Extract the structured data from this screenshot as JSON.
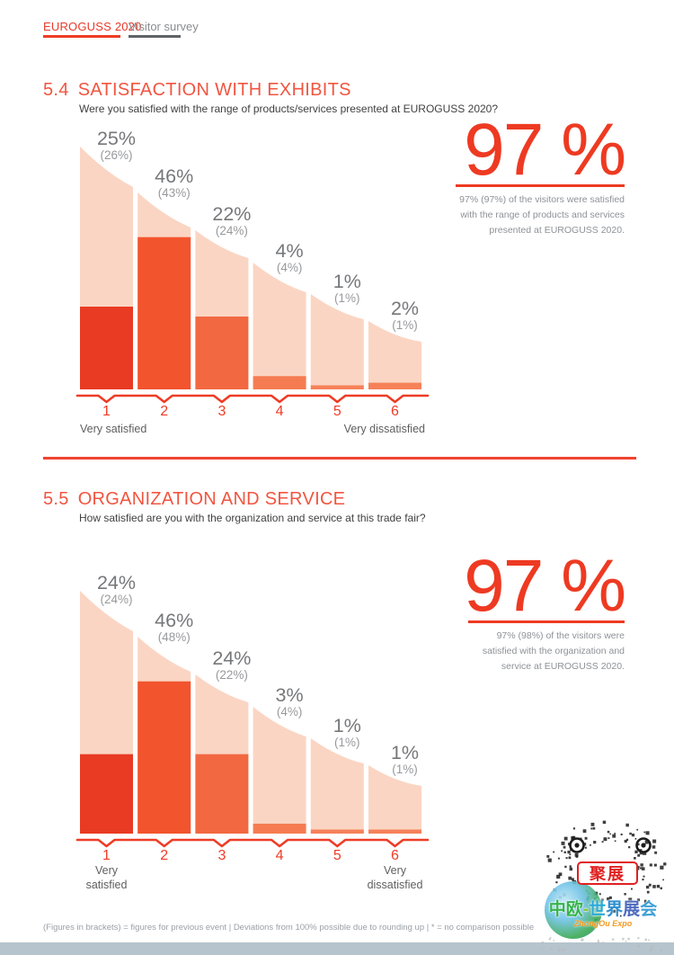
{
  "header": {
    "brand": "EUROGUSS 2020",
    "sub": "Visitor survey"
  },
  "colors": {
    "accent_red": "#ee3c26",
    "title_red": "#f15540",
    "peach_bg": "#fbd5c3",
    "bar_colors": [
      "#e93a23",
      "#f2542d",
      "#f26841",
      "#f57c51",
      "#f68159",
      "#f68159"
    ],
    "label_gray": "#76777a",
    "sub_label_gray": "#98999c",
    "axis_text_gray": "#5f5f5f"
  },
  "sections": [
    {
      "number": "5.4",
      "title": "SATISFACTION WITH EXHIBITS",
      "question": "Were you satisfied with the range of products/services presented at EUROGUSS 2020?",
      "highlight": {
        "value": "97 %",
        "text": "97% (97%) of the visitors were satisfied\nwith the range of products and services\npresented at EUROGUSS 2020."
      },
      "chart_data": {
        "type": "bar",
        "categories": [
          "1",
          "2",
          "3",
          "4",
          "5",
          "6"
        ],
        "values": [
          25,
          46,
          22,
          4,
          1,
          2
        ],
        "previous_values": [
          26,
          43,
          24,
          4,
          1,
          1
        ],
        "labels": [
          "25%",
          "46%",
          "22%",
          "4%",
          "1%",
          "2%"
        ],
        "previous_labels": [
          "(26%)",
          "(43%)",
          "(24%)",
          "(4%)",
          "(1%)",
          "(1%)"
        ],
        "left_axis_label_lines": [
          "Very satisfied"
        ],
        "right_axis_label_lines": [
          "Very dissatisfied"
        ],
        "ylim": [
          0,
          50
        ],
        "grid": false,
        "legend": "none"
      }
    },
    {
      "number": "5.5",
      "title": "ORGANIZATION AND SERVICE",
      "question": "How satisfied are you with the organization and service at this trade fair?",
      "highlight": {
        "value": "97 %",
        "text": "97% (98%) of the visitors were\nsatisfied with the organization and\nservice at EUROGUSS 2020."
      },
      "chart_data": {
        "type": "bar",
        "categories": [
          "1",
          "2",
          "3",
          "4",
          "5",
          "6"
        ],
        "values": [
          24,
          46,
          24,
          3,
          1,
          1
        ],
        "previous_values": [
          24,
          48,
          22,
          4,
          1,
          1
        ],
        "labels": [
          "24%",
          "46%",
          "24%",
          "3%",
          "1%",
          "1%"
        ],
        "previous_labels": [
          "(24%)",
          "(48%)",
          "(22%)",
          "(4%)",
          "(1%)",
          "(1%)"
        ],
        "left_axis_label_lines": [
          "Very",
          "satisfied"
        ],
        "right_axis_label_lines": [
          "Very",
          "dissatisfied"
        ],
        "ylim": [
          0,
          50
        ],
        "grid": false,
        "legend": "none"
      }
    }
  ],
  "footer": {
    "note": "(Figures in brackets) = figures for previous event | Deviations from 100% possible due to rounding up | * = no comparison possible"
  },
  "watermark": {
    "badge": "聚展",
    "title": "中欧-世界展会",
    "title_colors": [
      "#35b44a",
      "#35b44a",
      "#8bc53f",
      "#29a9d8",
      "#2e8fd0",
      "#4f6cbf",
      "#3fa0d8"
    ],
    "subtitle": "ZhongOu Expo"
  }
}
